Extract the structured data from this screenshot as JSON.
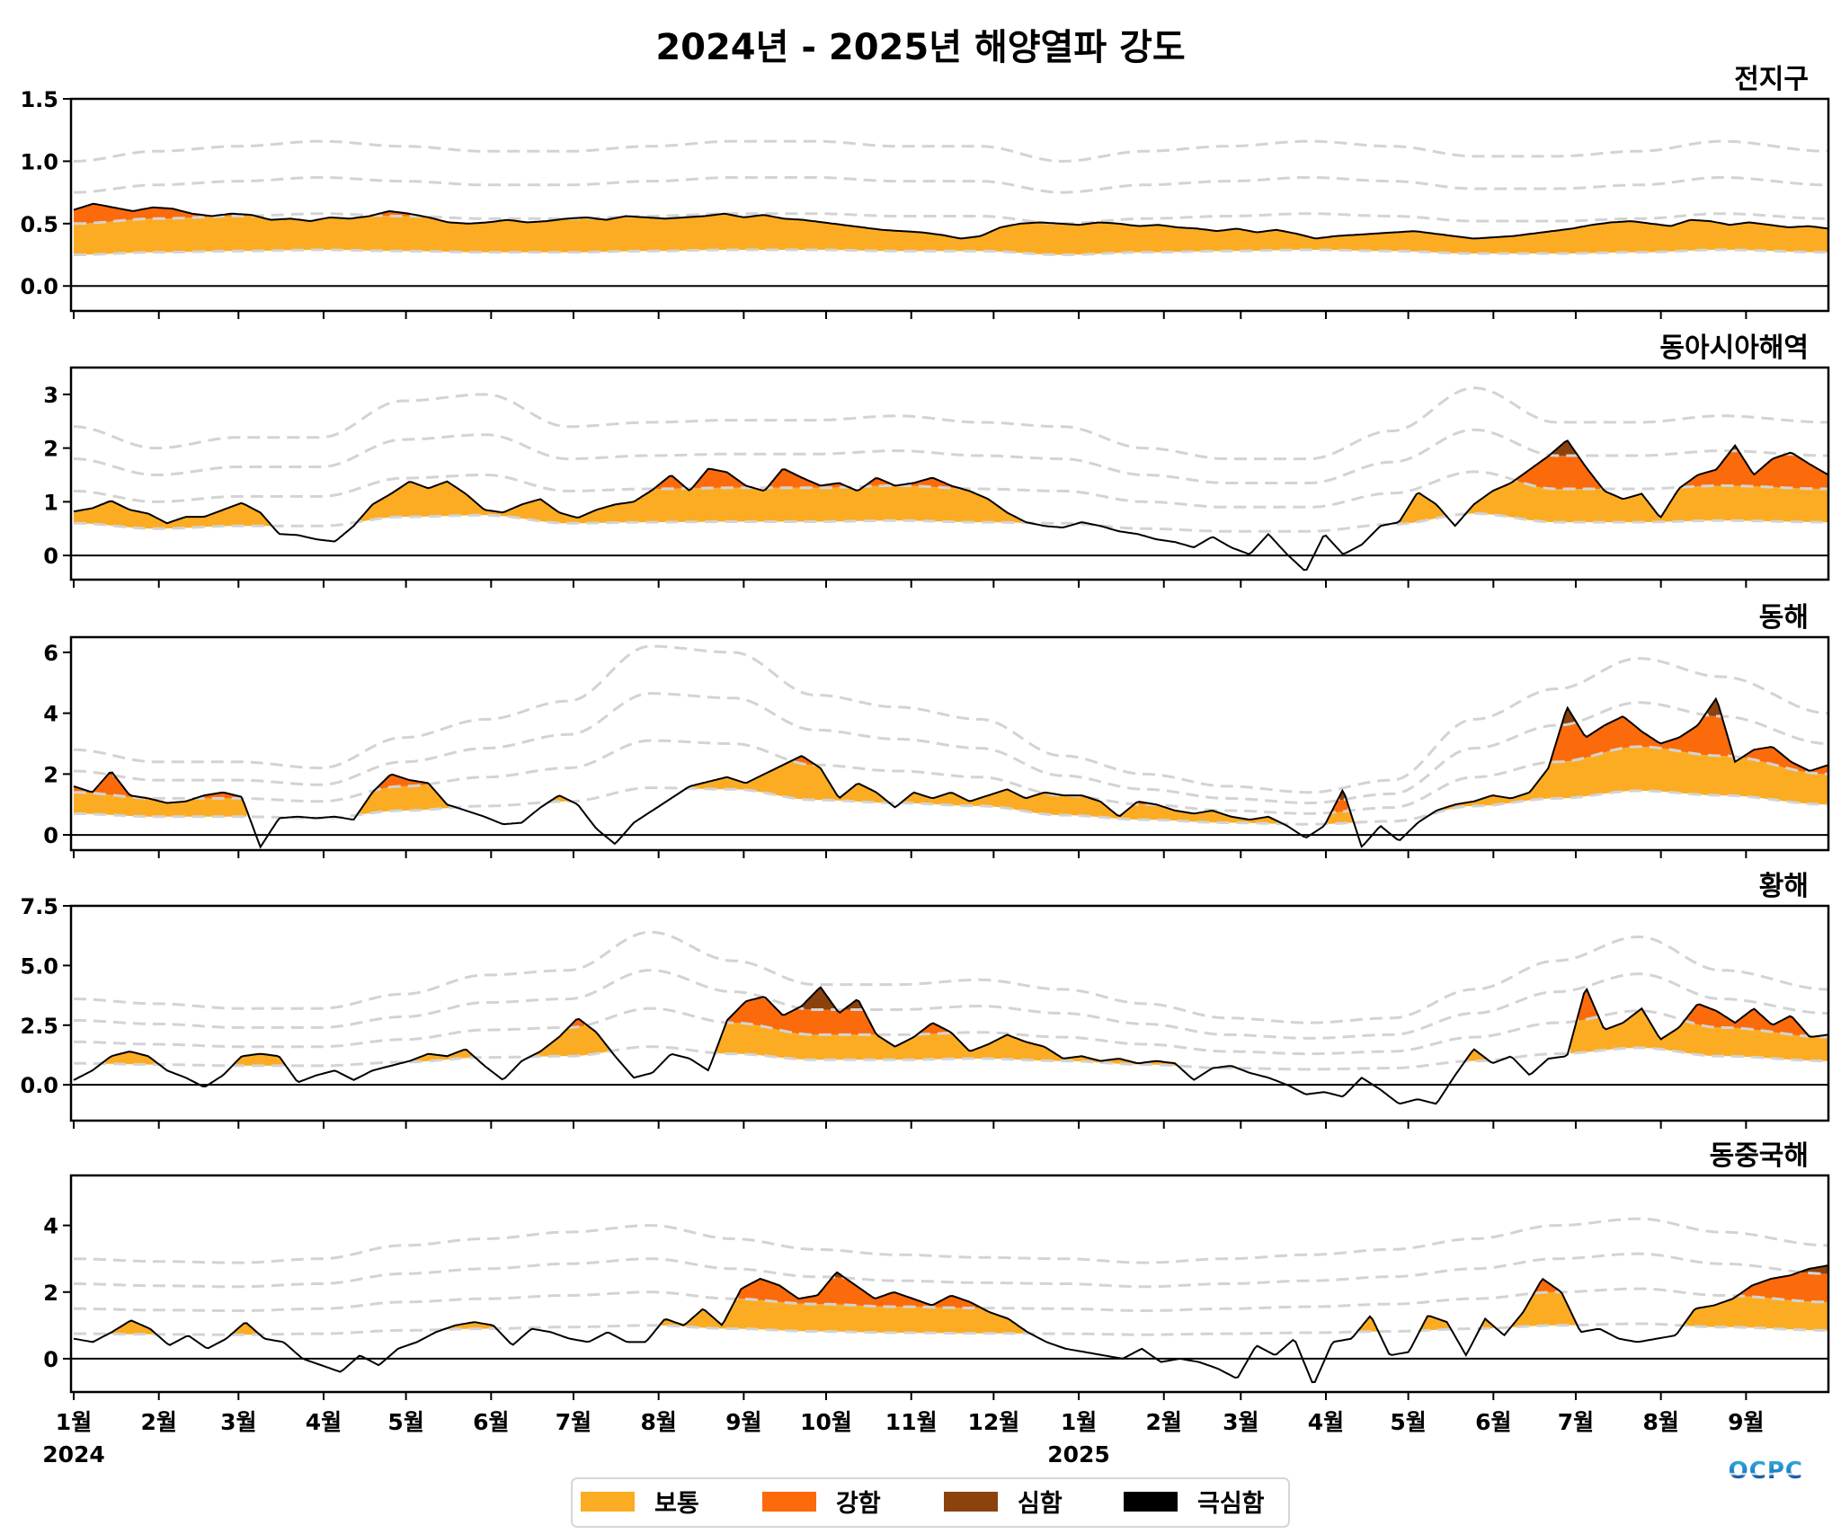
{
  "chart_data": {
    "type": "area",
    "title": "2024년 - 2025년 해양열파 강도",
    "x_unit": "day since 2024-01-01",
    "xlim": [
      0,
      639
    ],
    "x_ticks": [
      {
        "day": 0,
        "label": "1월",
        "year": "2024"
      },
      {
        "day": 31,
        "label": "2월"
      },
      {
        "day": 60,
        "label": "3월"
      },
      {
        "day": 91,
        "label": "4월"
      },
      {
        "day": 121,
        "label": "5월"
      },
      {
        "day": 152,
        "label": "6월"
      },
      {
        "day": 182,
        "label": "7월"
      },
      {
        "day": 213,
        "label": "8월"
      },
      {
        "day": 244,
        "label": "9월"
      },
      {
        "day": 274,
        "label": "10월"
      },
      {
        "day": 305,
        "label": "11월"
      },
      {
        "day": 335,
        "label": "12월"
      },
      {
        "day": 366,
        "label": "1월",
        "year": "2025"
      },
      {
        "day": 397,
        "label": "2월"
      },
      {
        "day": 425,
        "label": "3월"
      },
      {
        "day": 456,
        "label": "4월"
      },
      {
        "day": 486,
        "label": "5월"
      },
      {
        "day": 517,
        "label": "6월"
      },
      {
        "day": 547,
        "label": "7월"
      },
      {
        "day": 578,
        "label": "8월"
      },
      {
        "day": 609,
        "label": "9월"
      }
    ],
    "legend": [
      {
        "label": "보통",
        "color": "#FBAC23"
      },
      {
        "label": "강함",
        "color": "#FB6A0B"
      },
      {
        "label": "심함",
        "color": "#8B420D"
      },
      {
        "label": "극심함",
        "color": "#000000"
      }
    ],
    "legend_position": "bottom-center",
    "threshold_line_color": "#D3D3D3",
    "panels": [
      {
        "name": "전지구",
        "ylim": [
          -0.2,
          1.5
        ],
        "yticks": [
          0.0,
          0.5,
          1.0,
          1.5
        ],
        "ytick_labels": [
          "0.0",
          "0.5",
          "1.0",
          "1.5"
        ],
        "days": [
          0,
          30,
          60,
          90,
          120,
          150,
          180,
          210,
          240,
          270,
          300,
          330,
          360,
          390,
          420,
          450,
          480,
          510,
          540,
          570,
          600,
          639
        ],
        "threshold": [
          0.25,
          0.27,
          0.28,
          0.29,
          0.28,
          0.27,
          0.27,
          0.28,
          0.29,
          0.29,
          0.28,
          0.28,
          0.25,
          0.27,
          0.28,
          0.29,
          0.28,
          0.26,
          0.26,
          0.27,
          0.29,
          0.27
        ],
        "anomaly": [
          0.6,
          0.62,
          0.57,
          0.54,
          0.56,
          0.5,
          0.53,
          0.54,
          0.56,
          0.57,
          0.54,
          0.52,
          0.39,
          0.5,
          0.5,
          0.47,
          0.44,
          0.4,
          0.42,
          0.42,
          0.49,
          0.46
        ],
        "anomaly_detail": [
          0.61,
          0.66,
          0.63,
          0.6,
          0.63,
          0.62,
          0.58,
          0.56,
          0.58,
          0.57,
          0.53,
          0.54,
          0.52,
          0.55,
          0.54,
          0.56,
          0.6,
          0.58,
          0.55,
          0.51,
          0.5,
          0.51,
          0.53,
          0.51,
          0.52,
          0.54,
          0.55,
          0.53,
          0.56,
          0.55,
          0.54,
          0.55,
          0.56,
          0.58,
          0.55,
          0.57,
          0.54,
          0.53,
          0.51,
          0.49,
          0.47,
          0.45,
          0.44,
          0.43,
          0.41,
          0.38,
          0.4,
          0.47,
          0.5,
          0.51,
          0.5,
          0.49,
          0.51,
          0.5,
          0.48,
          0.49,
          0.47,
          0.46,
          0.44,
          0.46,
          0.43,
          0.45,
          0.42,
          0.38,
          0.4,
          0.41,
          0.42,
          0.43,
          0.44,
          0.42,
          0.4,
          0.38,
          0.39,
          0.4,
          0.42,
          0.44,
          0.46,
          0.49,
          0.51,
          0.52,
          0.5,
          0.48,
          0.53,
          0.52,
          0.49,
          0.51,
          0.49,
          0.47,
          0.48,
          0.46
        ]
      },
      {
        "name": "동아시아해역",
        "ylim": [
          -0.45,
          3.5
        ],
        "yticks": [
          0,
          1,
          2,
          3
        ],
        "ytick_labels": [
          "0",
          "1",
          "2",
          "3"
        ],
        "days": [
          0,
          30,
          60,
          90,
          120,
          150,
          180,
          210,
          240,
          270,
          300,
          330,
          360,
          390,
          420,
          450,
          480,
          510,
          540,
          570,
          600,
          639
        ],
        "threshold": [
          0.6,
          0.5,
          0.55,
          0.55,
          0.72,
          0.75,
          0.6,
          0.62,
          0.63,
          0.63,
          0.65,
          0.62,
          0.6,
          0.5,
          0.45,
          0.45,
          0.58,
          0.78,
          0.62,
          0.62,
          0.65,
          0.62
        ],
        "anomaly": [
          0.8,
          0.65,
          0.85,
          0.35,
          1.2,
          1.0,
          0.85,
          1.3,
          1.4,
          1.35,
          1.3,
          0.9,
          0.55,
          0.4,
          0.2,
          0.1,
          0.3,
          1.0,
          1.5,
          1.0,
          1.7,
          1.5
        ],
        "anomaly_detail": [
          0.82,
          0.88,
          1.02,
          0.85,
          0.78,
          0.6,
          0.72,
          0.72,
          0.85,
          0.98,
          0.8,
          0.4,
          0.38,
          0.3,
          0.26,
          0.55,
          0.95,
          1.15,
          1.38,
          1.25,
          1.38,
          1.15,
          0.85,
          0.8,
          0.95,
          1.05,
          0.8,
          0.7,
          0.85,
          0.95,
          1.0,
          1.22,
          1.5,
          1.2,
          1.62,
          1.55,
          1.3,
          1.2,
          1.62,
          1.45,
          1.3,
          1.35,
          1.2,
          1.45,
          1.3,
          1.35,
          1.45,
          1.3,
          1.2,
          1.05,
          0.8,
          0.62,
          0.55,
          0.52,
          0.62,
          0.55,
          0.45,
          0.4,
          0.3,
          0.25,
          0.15,
          0.35,
          0.15,
          0.02,
          0.4,
          0.02,
          -0.3,
          0.4,
          0.02,
          0.2,
          0.55,
          0.62,
          1.18,
          0.95,
          0.55,
          0.95,
          1.2,
          1.35,
          1.6,
          1.85,
          2.15,
          1.65,
          1.2,
          1.05,
          1.15,
          0.7,
          1.25,
          1.5,
          1.6,
          2.05,
          1.5,
          1.8,
          1.92,
          1.7,
          1.5
        ]
      },
      {
        "name": "동해",
        "ylim": [
          -0.5,
          6.5
        ],
        "yticks": [
          0,
          2,
          4,
          6
        ],
        "ytick_labels": [
          "0",
          "2",
          "4",
          "6"
        ],
        "days": [
          0,
          30,
          60,
          90,
          120,
          150,
          180,
          210,
          240,
          270,
          300,
          330,
          360,
          390,
          420,
          450,
          480,
          510,
          540,
          570,
          600,
          639
        ],
        "threshold": [
          0.7,
          0.6,
          0.6,
          0.55,
          0.8,
          0.95,
          1.1,
          1.55,
          1.5,
          1.15,
          1.05,
          0.95,
          0.65,
          0.5,
          0.4,
          0.35,
          0.45,
          0.95,
          1.2,
          1.45,
          1.3,
          1.0
        ],
        "anomaly": [
          1.6,
          1.2,
          1.3,
          0.6,
          1.8,
          0.7,
          0.3,
          1.5,
          2.4,
          1.2,
          1.4,
          1.2,
          0.6,
          0.8,
          0.55,
          0.3,
          0.1,
          1.2,
          3.5,
          3.6,
          3.2,
          2.3
        ],
        "anomaly_detail": [
          1.6,
          1.4,
          2.1,
          1.3,
          1.2,
          1.05,
          1.1,
          1.3,
          1.4,
          1.25,
          -0.4,
          0.55,
          0.6,
          0.55,
          0.6,
          0.5,
          1.4,
          2.0,
          1.8,
          1.7,
          1.0,
          0.8,
          0.6,
          0.35,
          0.4,
          0.9,
          1.3,
          1.0,
          0.2,
          -0.3,
          0.4,
          0.8,
          1.2,
          1.6,
          1.75,
          1.9,
          1.7,
          2.0,
          2.3,
          2.6,
          2.2,
          1.2,
          1.7,
          1.4,
          0.9,
          1.4,
          1.2,
          1.4,
          1.1,
          1.3,
          1.5,
          1.2,
          1.4,
          1.3,
          1.3,
          1.1,
          0.6,
          1.1,
          1.0,
          0.8,
          0.7,
          0.8,
          0.6,
          0.5,
          0.6,
          0.3,
          -0.1,
          0.3,
          1.5,
          -0.4,
          0.3,
          -0.2,
          0.4,
          0.8,
          1.0,
          1.1,
          1.3,
          1.2,
          1.4,
          2.2,
          4.2,
          3.2,
          3.6,
          3.9,
          3.4,
          3.0,
          3.2,
          3.6,
          4.5,
          2.4,
          2.8,
          2.9,
          2.4,
          2.1,
          2.3
        ]
      },
      {
        "name": "황해",
        "ylim": [
          -1.5,
          7.5
        ],
        "yticks": [
          0.0,
          2.5,
          5.0,
          7.5
        ],
        "ytick_labels": [
          "0.0",
          "2.5",
          "5.0",
          "7.5"
        ],
        "days": [
          0,
          30,
          60,
          90,
          120,
          150,
          180,
          210,
          240,
          270,
          300,
          330,
          360,
          390,
          420,
          450,
          480,
          510,
          540,
          570,
          600,
          639
        ],
        "threshold": [
          0.9,
          0.85,
          0.8,
          0.8,
          0.95,
          1.15,
          1.2,
          1.6,
          1.3,
          1.05,
          1.05,
          1.1,
          1.0,
          0.85,
          0.7,
          0.65,
          0.7,
          1.0,
          1.3,
          1.55,
          1.2,
          1.0
        ],
        "anomaly": [
          0.2,
          0.4,
          1.2,
          0.4,
          1.2,
          1.1,
          2.6,
          0.7,
          3.3,
          2.0,
          2.0,
          1.3,
          1.1,
          0.8,
          0.3,
          -0.3,
          -0.6,
          0.6,
          3.0,
          2.9,
          3.2,
          2.1
        ],
        "anomaly_detail": [
          0.2,
          0.6,
          1.2,
          1.4,
          1.2,
          0.6,
          0.3,
          -0.1,
          0.4,
          1.2,
          1.3,
          1.2,
          0.1,
          0.4,
          0.6,
          0.2,
          0.6,
          0.8,
          1.0,
          1.3,
          1.2,
          1.5,
          0.8,
          0.2,
          1.0,
          1.4,
          2.0,
          2.8,
          2.2,
          1.2,
          0.3,
          0.5,
          1.3,
          1.1,
          0.6,
          2.7,
          3.5,
          3.7,
          2.9,
          3.3,
          4.1,
          3.0,
          3.6,
          2.1,
          1.6,
          2.0,
          2.6,
          2.2,
          1.4,
          1.7,
          2.1,
          1.8,
          1.6,
          1.1,
          1.2,
          1.0,
          1.1,
          0.9,
          1.0,
          0.9,
          0.2,
          0.7,
          0.8,
          0.5,
          0.3,
          0.0,
          -0.4,
          -0.3,
          -0.5,
          0.3,
          -0.2,
          -0.8,
          -0.6,
          -0.8,
          0.4,
          1.5,
          0.9,
          1.2,
          0.4,
          1.1,
          1.2,
          4.1,
          2.3,
          2.6,
          3.2,
          1.9,
          2.4,
          3.4,
          3.1,
          2.6,
          3.2,
          2.5,
          2.9,
          2.0,
          2.1
        ]
      },
      {
        "name": "동중국해",
        "ylim": [
          -1.0,
          5.5
        ],
        "yticks": [
          0,
          2,
          4
        ],
        "ytick_labels": [
          "0",
          "2",
          "4"
        ],
        "days": [
          0,
          30,
          60,
          90,
          120,
          150,
          180,
          210,
          240,
          270,
          300,
          330,
          360,
          390,
          420,
          450,
          480,
          510,
          540,
          570,
          600,
          639
        ],
        "threshold": [
          0.75,
          0.73,
          0.72,
          0.75,
          0.85,
          0.9,
          0.95,
          1.0,
          0.9,
          0.82,
          0.78,
          0.76,
          0.75,
          0.72,
          0.75,
          0.78,
          0.82,
          0.9,
          1.0,
          1.05,
          0.95,
          0.85
        ],
        "anomaly": [
          0.6,
          0.7,
          0.5,
          -0.2,
          0.8,
          0.9,
          0.6,
          1.6,
          2.0,
          2.0,
          1.7,
          1.0,
          0.3,
          0.0,
          -0.3,
          0.2,
          0.1,
          0.8,
          2.3,
          0.7,
          1.6,
          2.7
        ],
        "anomaly_detail": [
          0.6,
          0.5,
          0.8,
          1.15,
          0.9,
          0.4,
          0.7,
          0.3,
          0.6,
          1.1,
          0.6,
          0.5,
          0.0,
          -0.2,
          -0.4,
          0.1,
          -0.2,
          0.3,
          0.5,
          0.8,
          1.0,
          1.1,
          1.0,
          0.4,
          0.9,
          0.8,
          0.6,
          0.5,
          0.8,
          0.5,
          0.5,
          1.2,
          1.0,
          1.5,
          1.0,
          2.1,
          2.4,
          2.2,
          1.8,
          1.9,
          2.6,
          2.2,
          1.8,
          2.0,
          1.8,
          1.6,
          1.9,
          1.7,
          1.4,
          1.2,
          0.8,
          0.5,
          0.3,
          0.2,
          0.1,
          0.0,
          0.3,
          -0.1,
          0.0,
          -0.1,
          -0.3,
          -0.6,
          0.4,
          0.1,
          0.6,
          -0.8,
          0.5,
          0.6,
          1.3,
          0.1,
          0.2,
          1.3,
          1.1,
          0.1,
          1.2,
          0.7,
          1.4,
          2.4,
          2.0,
          0.8,
          0.9,
          0.6,
          0.5,
          0.6,
          0.7,
          1.5,
          1.6,
          1.8,
          2.2,
          2.4,
          2.5,
          2.7,
          2.8
        ]
      }
    ]
  },
  "logo": {
    "text": "OCPC"
  }
}
